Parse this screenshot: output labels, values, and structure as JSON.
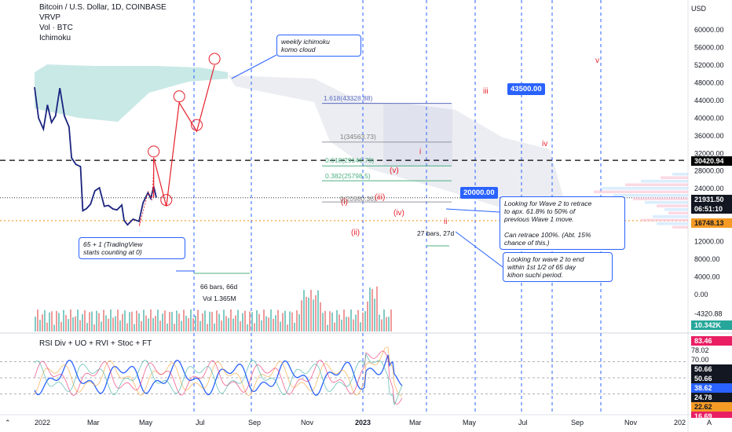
{
  "header": {
    "title": "Bitcoin / U.S. Dollar, 1D, COINBASE",
    "indicators": [
      "VRVP",
      "Vol · BTC",
      "Ichimoku"
    ],
    "rsi_title": "RSI Div + UO + RVI + Stoc + FT",
    "currency": "USD"
  },
  "chart_data": {
    "type": "line",
    "title": "Bitcoin / U.S. Dollar, 1D, COINBASE",
    "ylabel": "USD",
    "ylim": [
      -4320.88,
      64000
    ],
    "y_ticks": [
      "60000.00",
      "56000.00",
      "52000.00",
      "48000.00",
      "44000.00",
      "40000.00",
      "36000.00",
      "32000.00",
      "28000.00",
      "24000.00",
      "20000.00",
      "16000.00",
      "12000.00",
      "8000.00",
      "4000.00",
      "0.00",
      "-4320.88"
    ],
    "x_ticks": [
      "2022",
      "Mar",
      "May",
      "Jul",
      "Sep",
      "Nov",
      "2023",
      "Mar",
      "May",
      "Jul",
      "Sep",
      "Nov",
      "202"
    ],
    "price_series": {
      "name": "BTCUSD",
      "dates": [
        "2022-01-01",
        "2022-01-15",
        "2022-02-01",
        "2022-02-15",
        "2022-03-01",
        "2022-03-15",
        "2022-03-30",
        "2022-04-15",
        "2022-05-01",
        "2022-05-10",
        "2022-05-25",
        "2022-06-10",
        "2022-06-18",
        "2022-07-01",
        "2022-07-15",
        "2022-07-30",
        "2022-08-15",
        "2022-09-01",
        "2022-09-15",
        "2022-10-01",
        "2022-10-15",
        "2022-11-01",
        "2022-11-09",
        "2022-11-21",
        "2022-12-10",
        "2022-12-31",
        "2023-01-14",
        "2023-01-31",
        "2023-02-10",
        "2023-02-20",
        "2023-03-01"
      ],
      "values": [
        47000,
        40000,
        37500,
        43000,
        39000,
        40500,
        46800,
        40500,
        38000,
        31000,
        29500,
        29000,
        19000,
        19500,
        20500,
        23500,
        24200,
        20000,
        20200,
        19400,
        19200,
        20300,
        16800,
        15800,
        17100,
        16600,
        20800,
        23100,
        21800,
        24500,
        22000
      ]
    },
    "projection": {
      "name": "Elliott wave projection",
      "points": [
        {
          "label": "(i)",
          "date": "2023-01-05",
          "y": 17600
        },
        {
          "label": "(ii)",
          "date": "2023-01-01",
          "y": 15500
        },
        {
          "label": "(iii)",
          "date": "2023-02-01",
          "y": 23300
        },
        {
          "label": "(iv)",
          "date": "2023-02-14",
          "y": 21400
        },
        {
          "label": "(v)",
          "date": "2023-02-20",
          "y": 28500
        },
        {
          "label": "i",
          "date": "2023-02-20",
          "y": 31000
        },
        {
          "label": "ii",
          "date": "2023-04-05",
          "y": 20000
        },
        {
          "label": "iii",
          "date": "2023-05-20",
          "y": 43500
        },
        {
          "label": "iv",
          "date": "2023-07-20",
          "y": 37000
        },
        {
          "label": "v",
          "date": "2023-09-20",
          "y": 52000
        }
      ]
    },
    "fib_levels": [
      {
        "label": "1.618(43328.88)",
        "value": 43328.88
      },
      {
        "label": "1(34563.73)",
        "value": 34563.73
      },
      {
        "label": "0.618(29146.79)",
        "value": 29146.79
      },
      {
        "label": "0.382(25798.5)",
        "value": 25798.5
      },
      {
        "label": "0(20980.36)",
        "value": 20980.36
      }
    ],
    "price_labels": [
      {
        "text": "30420.94",
        "value": 30420.94,
        "color": "#000000"
      },
      {
        "text": "21931.50",
        "value": 21931.5,
        "color": "#131722"
      },
      {
        "text": "06:51:10",
        "value": 21931.5,
        "color": "#131722"
      },
      {
        "text": "16748.13",
        "value": 16748.13,
        "color": "#f59b25"
      },
      {
        "text": "10.342K",
        "value": 10342,
        "color": "#26a69a"
      }
    ],
    "target_labels": [
      {
        "text": "43500.00",
        "value": 43500
      },
      {
        "text": "20000.00",
        "value": 20000
      }
    ],
    "volume_label": "Vol 1.365M",
    "bars_label_1": "66 bars, 66d",
    "bars_label_2": "27 bars, 27d",
    "rsi": {
      "ylim": [
        10,
        90
      ],
      "y_ticks": [
        "78.02",
        "70.00",
        "38.62",
        "24.78",
        "22.62"
      ],
      "highlight_labels": [
        {
          "text": "83.46",
          "color": "#e91e63"
        },
        {
          "text": "50.66",
          "color": "#131722"
        },
        {
          "text": "50.66",
          "color": "#131722"
        },
        {
          "text": "38.62",
          "color": "#2962ff"
        },
        {
          "text": "24.78",
          "color": "#131722"
        },
        {
          "text": "22.62",
          "color": "#f59b25"
        },
        {
          "text": "16.69",
          "color": "#e91e63"
        }
      ]
    }
  },
  "annotations": {
    "weekly_cloud": "weekly ichimoku\nkomo cloud",
    "tv_count": "65 + 1 (TradingView\nstarts counting at 0)",
    "wave2_retrace": "Looking for Wave 2 to retrace\nto apx. 61.8% to 50% of\nprevious Wave 1 move.\n\nCan retrace 100%. (Abt. 15%\nchance of this.)",
    "wave2_end": "Looking for wave 2 to end\nwithin 1st 1/2 of 65 day\nkihon suchi period."
  },
  "colors": {
    "price": "#1a237e",
    "projection": "#e5212b",
    "fib_blue": "#5b6bc0",
    "fib_green": "#4caf80",
    "cloud": "#b2dfdb",
    "time_lines": "#2962ff",
    "orange": "#f59b25"
  }
}
